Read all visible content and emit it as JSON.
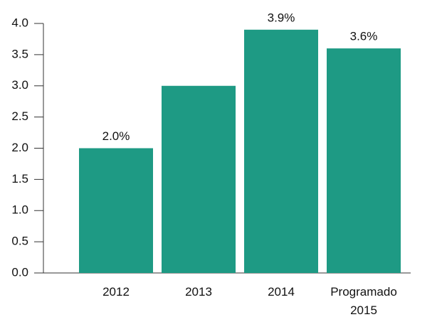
{
  "chart_data": {
    "type": "bar",
    "categories": [
      "2012",
      "2013",
      "2014",
      "Programado\n2015"
    ],
    "values": [
      2.0,
      3.0,
      3.9,
      3.6
    ],
    "value_labels": [
      "2.0%",
      null,
      "3.9%",
      "3.6%"
    ],
    "color": "#1e9a84",
    "ylim": [
      0,
      4
    ],
    "yticks": [
      {
        "value": 0,
        "label": "0.0"
      },
      0.5,
      {
        "value": 1,
        "label": "1.0"
      },
      1.5,
      {
        "value": 2,
        "label": "2.0"
      },
      2.5,
      {
        "value": 3,
        "label": "3.0"
      },
      3.5,
      {
        "value": 4,
        "label": "4.0"
      }
    ],
    "grid": false
  }
}
